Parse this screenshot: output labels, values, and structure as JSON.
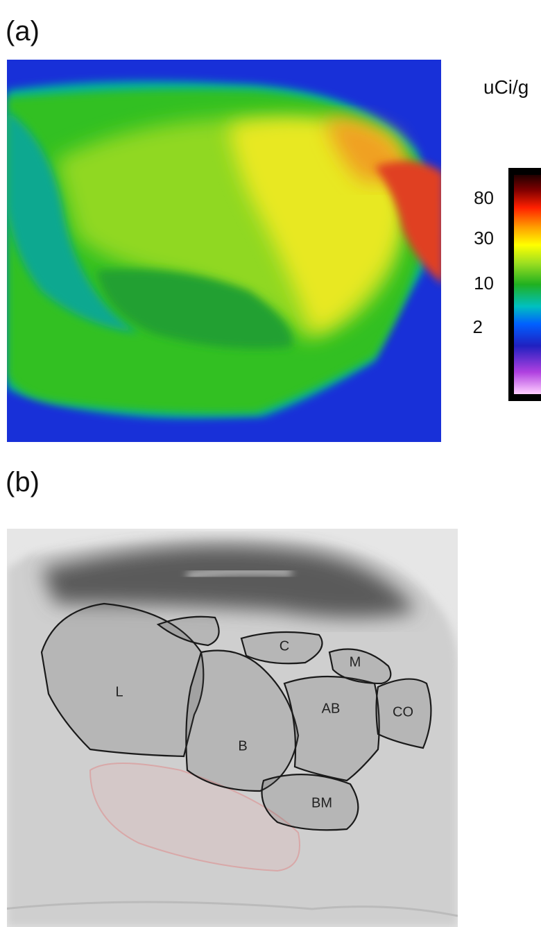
{
  "panel_a": {
    "label": "(a)",
    "colorbar": {
      "unit": "uCi/g",
      "ticks": [
        "80",
        "30",
        "10",
        "2"
      ]
    }
  },
  "panel_b": {
    "label": "(b)",
    "regions": [
      "L",
      "B",
      "AB",
      "CO",
      "BM",
      "M",
      "C"
    ]
  }
}
